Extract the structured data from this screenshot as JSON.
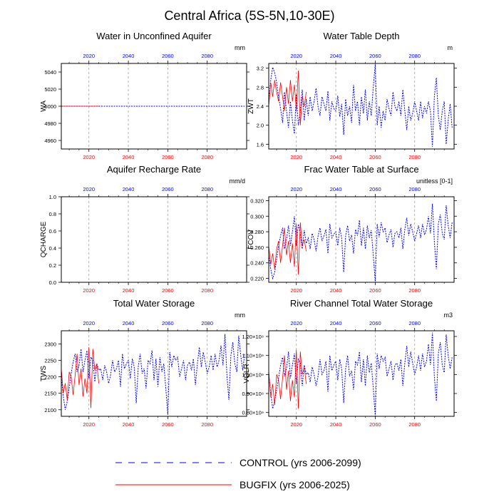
{
  "figure": {
    "title": "Central Africa (5S-5N,10-30E)"
  },
  "colors": {
    "control": "#0000ff",
    "bugfix": "#ff0000",
    "top_axis_labels": "#0000ff",
    "bottom_axis_labels": "#ff0000",
    "grid": "#a0a0a0"
  },
  "legend": {
    "items": [
      {
        "label": "CONTROL (yrs 2006-2099)",
        "color": "#0000ff",
        "style": "dashed"
      },
      {
        "label": "BUGFIX (yrs 2006-2025)",
        "color": "#ff0000",
        "style": "solid"
      }
    ]
  },
  "chart_data": [
    {
      "type": "line",
      "title": "Water in Unconfined Aquifer",
      "ylabel": "WA",
      "units": "mm",
      "xlim": [
        2006,
        2100
      ],
      "ylim": [
        4950,
        5050
      ],
      "yticks": [
        4960,
        4980,
        5000,
        5020,
        5040
      ],
      "ytick_labels": [
        "4960",
        "4980",
        "5000",
        "5020",
        "5040"
      ],
      "xticks": [
        2020,
        2040,
        2060,
        2080
      ],
      "xtick_labels": [
        "2020",
        "2040",
        "2060",
        "2080"
      ],
      "grid": "vertical dashed at x ticks",
      "series": [
        {
          "name": "CONTROL",
          "x_start": 2006,
          "values": [
            5000,
            5000,
            5000,
            5000,
            5000,
            5000,
            5000,
            5000,
            5000,
            5000,
            5000,
            5000,
            5000,
            5000,
            5000,
            5000,
            5000,
            5000,
            5000,
            5000,
            5000,
            5000,
            5000,
            5000,
            5000,
            5000,
            5000,
            5000,
            5000,
            5000,
            5000,
            5000,
            5000,
            5000,
            5000,
            5000,
            5000,
            5000,
            5000,
            5000,
            5000,
            5000,
            5000,
            5000,
            5000,
            5000,
            5000,
            5000,
            5000,
            5000,
            5000,
            5000,
            5000,
            5000,
            5000,
            5000,
            5000,
            5000,
            5000,
            5000,
            5000,
            5000,
            5000,
            5000,
            5000,
            5000,
            5000,
            5000,
            5000,
            5000,
            5000,
            5000,
            5000,
            5000,
            5000,
            5000,
            5000,
            5000,
            5000,
            5000,
            5000,
            5000,
            5000,
            5000,
            5000,
            5000,
            5000,
            5000,
            5000,
            5000,
            5000,
            5000,
            5000,
            5000
          ]
        },
        {
          "name": "BUGFIX",
          "x_start": 2006,
          "values": [
            5000,
            5000,
            5000,
            5000,
            5000,
            5000,
            5000,
            5000,
            5000,
            5000,
            5000,
            5000,
            5000,
            5000,
            5000,
            5000,
            5000,
            5000,
            5000,
            5000
          ]
        }
      ]
    },
    {
      "type": "line",
      "title": "Water Table Depth",
      "ylabel": "ZWT",
      "units": "m",
      "xlim": [
        2006,
        2100
      ],
      "ylim": [
        1.5,
        3.3
      ],
      "yticks": [
        1.6,
        2.0,
        2.4,
        2.8,
        3.2
      ],
      "ytick_labels": [
        "1.6",
        "2.0",
        "2.4",
        "2.8",
        "3.2"
      ],
      "xticks": [
        2020,
        2040,
        2060,
        2080
      ],
      "xtick_labels": [
        "2020",
        "2040",
        "2060",
        "2080"
      ],
      "grid": "vertical dashed at x ticks",
      "series": [
        {
          "name": "CONTROL",
          "x_start": 2006,
          "values": [
            2.5,
            2.95,
            3.22,
            3.1,
            2.9,
            2.6,
            2.35,
            2.05,
            2.7,
            2.3,
            1.95,
            2.5,
            2.1,
            1.82,
            2.65,
            2.0,
            2.3,
            2.75,
            2.1,
            2.55,
            2.2,
            2.6,
            2.3,
            2.5,
            2.78,
            2.4,
            2.2,
            2.6,
            2.45,
            2.3,
            2.72,
            2.1,
            2.5,
            2.35,
            2.3,
            2.62,
            2.18,
            2.45,
            1.8,
            2.55,
            2.2,
            2.4,
            2.05,
            2.85,
            2.3,
            2.5,
            2.0,
            2.6,
            2.25,
            2.75,
            2.1,
            2.5,
            2.2,
            2.8,
            3.28,
            2.0,
            2.4,
            1.95,
            2.3,
            2.1,
            2.55,
            2.35,
            2.2,
            2.7,
            2.4,
            2.3,
            2.5,
            2.2,
            2.75,
            2.3,
            1.9,
            2.4,
            2.1,
            2.25,
            2.5,
            2.3,
            2.1,
            2.5,
            2.15,
            2.4,
            2.25,
            2.5,
            2.3,
            1.55,
            2.6,
            3.0,
            2.2,
            1.9,
            2.3,
            2.5,
            1.6,
            2.1,
            2.45,
            1.95
          ]
        },
        {
          "name": "BUGFIX",
          "x_start": 2006,
          "values": [
            2.4,
            2.9,
            2.6,
            2.95,
            2.7,
            2.5,
            2.9,
            2.6,
            2.3,
            2.8,
            2.45,
            2.95,
            2.5,
            2.85,
            2.3,
            3.15,
            2.0,
            2.6,
            2.4,
            2.7
          ]
        }
      ]
    },
    {
      "type": "line",
      "title": "Aquifer Recharge Rate",
      "ylabel": "QCHARGE",
      "units": "mm/d",
      "xlim": [
        2006,
        2100
      ],
      "ylim": [
        0,
        1.0
      ],
      "yticks": [
        0.0,
        0.2,
        0.4,
        0.6,
        0.8,
        1.0
      ],
      "ytick_labels": [
        "0.0",
        "0.2",
        "0.4",
        "0.6",
        "0.8",
        "1.0"
      ],
      "xticks": [
        2020,
        2040,
        2060,
        2080
      ],
      "xtick_labels": [
        "2020",
        "2040",
        "2060",
        "2080"
      ],
      "grid": "vertical dashed at x ticks",
      "series": []
    },
    {
      "type": "line",
      "title": "Frac Water Table at Surface",
      "ylabel": "FCOV",
      "units": "unitless [0-1]",
      "xlim": [
        2006,
        2100
      ],
      "ylim": [
        0.215,
        0.325
      ],
      "yticks": [
        0.22,
        0.24,
        0.26,
        0.28,
        0.3,
        0.32
      ],
      "ytick_labels": [
        "0.220",
        "0.240",
        "0.260",
        "0.280",
        "0.300",
        "0.320"
      ],
      "xticks": [
        2020,
        2040,
        2060,
        2080
      ],
      "xtick_labels": [
        "2020",
        "2040",
        "2060",
        "2080"
      ],
      "grid": "vertical dashed at x ticks",
      "series": [
        {
          "name": "CONTROL",
          "x_start": 2006,
          "values": [
            0.25,
            0.232,
            0.22,
            0.228,
            0.245,
            0.262,
            0.275,
            0.285,
            0.258,
            0.27,
            0.288,
            0.262,
            0.28,
            0.3,
            0.262,
            0.29,
            0.278,
            0.258,
            0.282,
            0.265,
            0.272,
            0.258,
            0.278,
            0.27,
            0.255,
            0.274,
            0.285,
            0.268,
            0.275,
            0.283,
            0.252,
            0.29,
            0.272,
            0.277,
            0.28,
            0.262,
            0.285,
            0.272,
            0.228,
            0.275,
            0.288,
            0.268,
            0.276,
            0.252,
            0.283,
            0.275,
            0.295,
            0.262,
            0.285,
            0.258,
            0.288,
            0.272,
            0.282,
            0.25,
            0.216,
            0.29,
            0.273,
            0.292,
            0.28,
            0.285,
            0.266,
            0.276,
            0.283,
            0.26,
            0.278,
            0.28,
            0.272,
            0.285,
            0.258,
            0.283,
            0.298,
            0.275,
            0.29,
            0.28,
            0.268,
            0.278,
            0.288,
            0.272,
            0.29,
            0.276,
            0.283,
            0.3,
            0.278,
            0.316,
            0.268,
            0.232,
            0.29,
            0.302,
            0.278,
            0.27,
            0.314,
            0.288,
            0.272,
            0.292
          ]
        },
        {
          "name": "BUGFIX",
          "x_start": 2006,
          "values": [
            0.262,
            0.238,
            0.252,
            0.232,
            0.258,
            0.268,
            0.24,
            0.262,
            0.285,
            0.25,
            0.268,
            0.24,
            0.265,
            0.235,
            0.29,
            0.225,
            0.292,
            0.262,
            0.27,
            0.255
          ]
        }
      ]
    },
    {
      "type": "line",
      "title": "Total Water Storage",
      "ylabel": "TWS",
      "units": "mm",
      "xlim": [
        2006,
        2100
      ],
      "ylim": [
        2080,
        2340
      ],
      "yticks": [
        2100,
        2150,
        2200,
        2250,
        2300
      ],
      "ytick_labels": [
        "2100",
        "2150",
        "2200",
        "2250",
        "2300"
      ],
      "xticks": [
        2020,
        2040,
        2060,
        2080
      ],
      "xtick_labels": [
        "2020",
        "2040",
        "2060",
        "2080"
      ],
      "grid": "vertical dashed at x ticks",
      "series": [
        {
          "name": "CONTROL",
          "x_start": 2006,
          "values": [
            2200,
            2140,
            2100,
            2125,
            2165,
            2210,
            2245,
            2270,
            2215,
            2235,
            2285,
            2215,
            2250,
            2280,
            2195,
            2260,
            2250,
            2185,
            2240,
            2220,
            2225,
            2190,
            2235,
            2215,
            2180,
            2205,
            2250,
            2215,
            2225,
            2250,
            2170,
            2270,
            2225,
            2240,
            2250,
            2195,
            2255,
            2230,
            2120,
            2230,
            2270,
            2210,
            2225,
            2165,
            2250,
            2240,
            2280,
            2190,
            2255,
            2170,
            2260,
            2215,
            2240,
            2165,
            2085,
            2275,
            2230,
            2265,
            2250,
            2260,
            2200,
            2225,
            2250,
            2190,
            2235,
            2245,
            2220,
            2255,
            2175,
            2240,
            2290,
            2230,
            2275,
            2245,
            2210,
            2230,
            2265,
            2220,
            2270,
            2230,
            2250,
            2295,
            2235,
            2330,
            2205,
            2130,
            2265,
            2305,
            2240,
            2215,
            2325,
            2265,
            2220,
            2270
          ]
        },
        {
          "name": "BUGFIX",
          "x_start": 2006,
          "values": [
            2225,
            2150,
            2180,
            2130,
            2215,
            2200,
            2145,
            2205,
            2270,
            2175,
            2225,
            2140,
            2195,
            2150,
            2290,
            2105,
            2285,
            2220,
            2240,
            2180
          ]
        }
      ]
    },
    {
      "type": "line",
      "title": "River Channel Total Water Storage",
      "ylabel": "VOLR",
      "units": "m3",
      "xlim": [
        2006,
        2100
      ],
      "ylim": [
        780000000.0,
        1230000000.0
      ],
      "yticks": [
        800000000.0,
        900000000.0,
        1000000000.0,
        1100000000.0,
        1200000000.0
      ],
      "ytick_labels": [
        "0.80×10⁹",
        "0.90×10⁹",
        "1.00×10⁹",
        "1.10×10⁹",
        "1.20×10⁹"
      ],
      "xticks": [
        2020,
        2040,
        2060,
        2080
      ],
      "xtick_labels": [
        "2020",
        "2040",
        "2060",
        "2080"
      ],
      "grid": "vertical dashed at x ticks",
      "series": [
        {
          "name": "CONTROL",
          "x_start": 2006,
          "values": [
            1000000000.0,
            900000000.0,
            820000000.0,
            860000000.0,
            920000000.0,
            980000000.0,
            1050000000.0,
            1090000000.0,
            990000000.0,
            1030000000.0,
            1120000000.0,
            980000000.0,
            1050000000.0,
            1110000000.0,
            950000000.0,
            1080000000.0,
            1060000000.0,
            940000000.0,
            1050000000.0,
            1000000000.0,
            1010000000.0,
            960000000.0,
            1040000000.0,
            1000000000.0,
            940000000.0,
            990000000.0,
            1080000000.0,
            1000000000.0,
            1020000000.0,
            1070000000.0,
            910000000.0,
            1100000000.0,
            1020000000.0,
            1050000000.0,
            1070000000.0,
            970000000.0,
            1080000000.0,
            1030000000.0,
            850000000.0,
            1030000000.0,
            1100000000.0,
            990000000.0,
            1020000000.0,
            920000000.0,
            1070000000.0,
            1050000000.0,
            1120000000.0,
            960000000.0,
            1080000000.0,
            940000000.0,
            1100000000.0,
            1010000000.0,
            1060000000.0,
            930000000.0,
            780000000.0,
            1110000000.0,
            1030000000.0,
            1100000000.0,
            1070000000.0,
            1090000000.0,
            990000000.0,
            1030000000.0,
            1070000000.0,
            970000000.0,
            1050000000.0,
            1060000000.0,
            1020000000.0,
            1080000000.0,
            940000000.0,
            1060000000.0,
            1150000000.0,
            1040000000.0,
            1120000000.0,
            1060000000.0,
            1000000000.0,
            1040000000.0,
            1100000000.0,
            1020000000.0,
            1110000000.0,
            1040000000.0,
            1070000000.0,
            1160000000.0,
            1050000000.0,
            1220000000.0,
            990000000.0,
            860000000.0,
            1110000000.0,
            1170000000.0,
            1050000000.0,
            1010000000.0,
            1210000000.0,
            1100000000.0,
            1030000000.0,
            1090000000.0
          ]
        },
        {
          "name": "BUGFIX",
          "x_start": 2006,
          "values": [
            1020000000.0,
            880000000.0,
            950000000.0,
            840000000.0,
            1000000000.0,
            970000000.0,
            870000000.0,
            980000000.0,
            1100000000.0,
            920000000.0,
            1020000000.0,
            860000000.0,
            970000000.0,
            880000000.0,
            1130000000.0,
            820000000.0,
            1120000000.0,
            1000000000.0,
            1040000000.0,
            950000000.0
          ]
        }
      ]
    }
  ]
}
